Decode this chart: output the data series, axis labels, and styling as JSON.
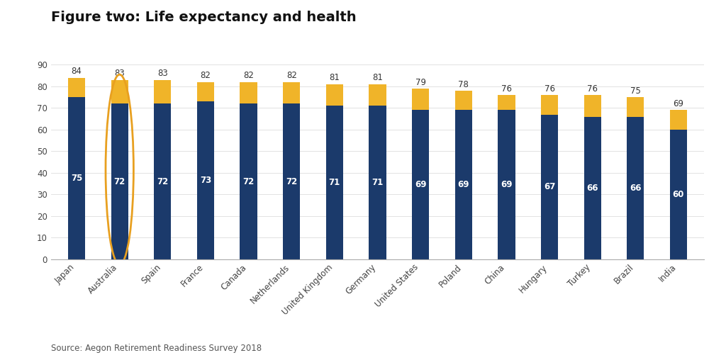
{
  "title": "Figure two: Life expectancy and health",
  "source": "Source: Aegon Retirement Readiness Survey 2018",
  "categories": [
    "Japan",
    "Australia",
    "Spain",
    "France",
    "Canada",
    "Netherlands",
    "United Kingdom",
    "Germany",
    "United States",
    "Poland",
    "China",
    "Hungary",
    "Turkey",
    "Brazil",
    "India"
  ],
  "healthy_life": [
    75,
    72,
    72,
    73,
    72,
    72,
    71,
    71,
    69,
    69,
    69,
    67,
    66,
    66,
    60
  ],
  "life_expectancy_total": [
    84,
    83,
    83,
    82,
    82,
    82,
    81,
    81,
    79,
    78,
    76,
    76,
    76,
    75,
    69
  ],
  "bar_color_healthy": "#1b3a6b",
  "bar_color_extra": "#f0b429",
  "background_color": "#ffffff",
  "title_fontsize": 14,
  "label_fontsize": 8.5,
  "tick_fontsize": 8.5,
  "legend_fontsize": 9,
  "source_fontsize": 8.5,
  "highlight_index": 1,
  "highlight_color": "#e8a020",
  "ylim": [
    0,
    95
  ],
  "yticks": [
    0,
    10,
    20,
    30,
    40,
    50,
    60,
    70,
    80,
    90
  ]
}
